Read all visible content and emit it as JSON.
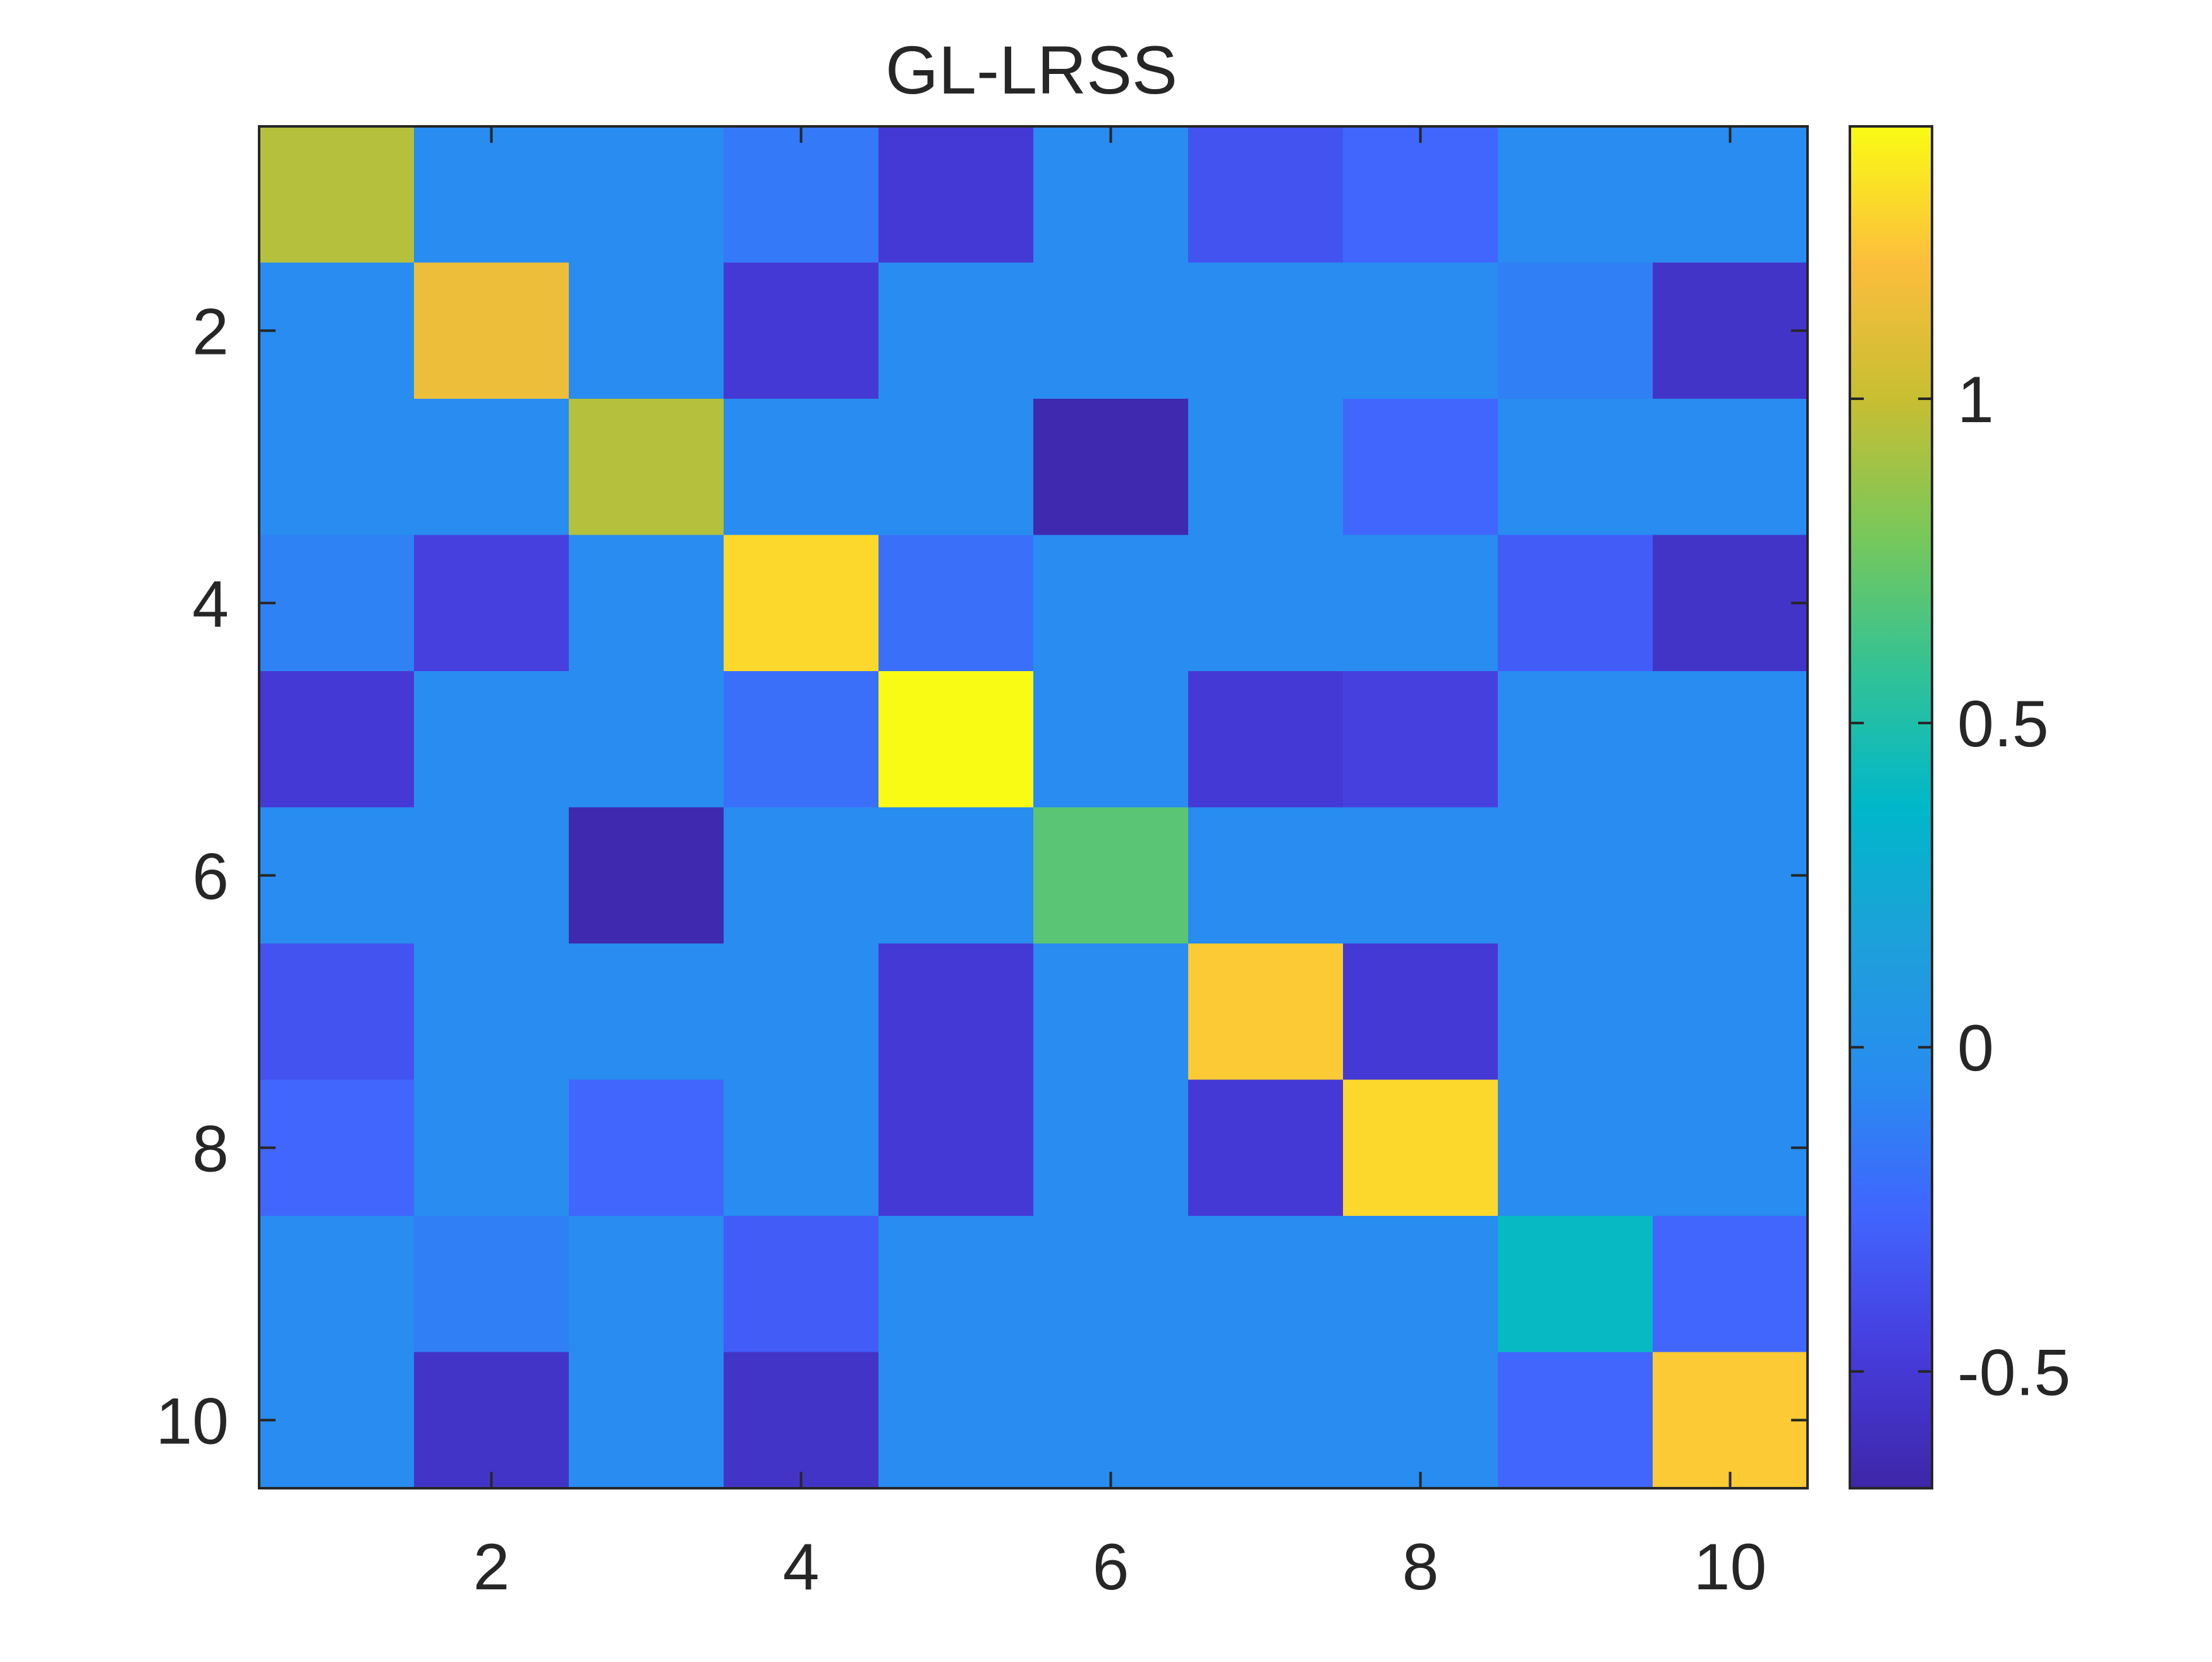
{
  "chart_data": {
    "type": "heatmap",
    "title": "GL-LRSS",
    "xlabel": "",
    "ylabel": "",
    "x": [
      1,
      2,
      3,
      4,
      5,
      6,
      7,
      8,
      9,
      10
    ],
    "y": [
      1,
      2,
      3,
      4,
      5,
      6,
      7,
      8,
      9,
      10
    ],
    "xlim": [
      0.5,
      10.5
    ],
    "ylim": [
      0.5,
      10.5
    ],
    "y_direction": "reverse",
    "xticks": [
      2,
      4,
      6,
      8,
      10
    ],
    "yticks": [
      2,
      4,
      6,
      8,
      10
    ],
    "xtick_labels": [
      "2",
      "4",
      "6",
      "8",
      "10"
    ],
    "ytick_labels": [
      "2",
      "4",
      "6",
      "8",
      "10"
    ],
    "grid": false,
    "colormap": "parula",
    "colorbar": {
      "location": "right",
      "limits": [
        -0.68,
        1.42
      ],
      "ticks": [
        -0.5,
        0,
        0.5,
        1
      ],
      "tick_labels": [
        "-0.5",
        "0",
        "0.5",
        "1"
      ]
    },
    "values": [
      [
        0.95,
        -0.05,
        -0.05,
        -0.15,
        -0.5,
        -0.05,
        -0.35,
        -0.25,
        -0.05,
        -0.05
      ],
      [
        -0.05,
        1.15,
        -0.05,
        -0.5,
        -0.05,
        -0.05,
        -0.05,
        -0.05,
        -0.12,
        -0.55
      ],
      [
        -0.05,
        -0.05,
        0.95,
        -0.05,
        -0.05,
        -0.65,
        -0.05,
        -0.25,
        -0.05,
        -0.05
      ],
      [
        -0.1,
        -0.45,
        -0.05,
        1.3,
        -0.2,
        -0.05,
        -0.05,
        -0.05,
        -0.3,
        -0.55
      ],
      [
        -0.5,
        -0.05,
        -0.05,
        -0.2,
        1.42,
        -0.05,
        -0.5,
        -0.45,
        -0.05,
        -0.05
      ],
      [
        -0.05,
        -0.05,
        -0.65,
        -0.05,
        -0.05,
        0.7,
        -0.05,
        -0.05,
        -0.05,
        -0.05
      ],
      [
        -0.35,
        -0.05,
        -0.05,
        -0.05,
        -0.5,
        -0.05,
        1.25,
        -0.5,
        -0.05,
        -0.05
      ],
      [
        -0.25,
        -0.05,
        -0.25,
        -0.05,
        -0.5,
        -0.05,
        -0.5,
        1.3,
        -0.05,
        -0.05
      ],
      [
        -0.05,
        -0.12,
        -0.05,
        -0.3,
        -0.05,
        -0.05,
        -0.05,
        -0.05,
        0.4,
        -0.25
      ],
      [
        -0.05,
        -0.55,
        -0.05,
        -0.55,
        -0.05,
        -0.05,
        -0.05,
        -0.05,
        -0.25,
        1.25
      ]
    ]
  }
}
